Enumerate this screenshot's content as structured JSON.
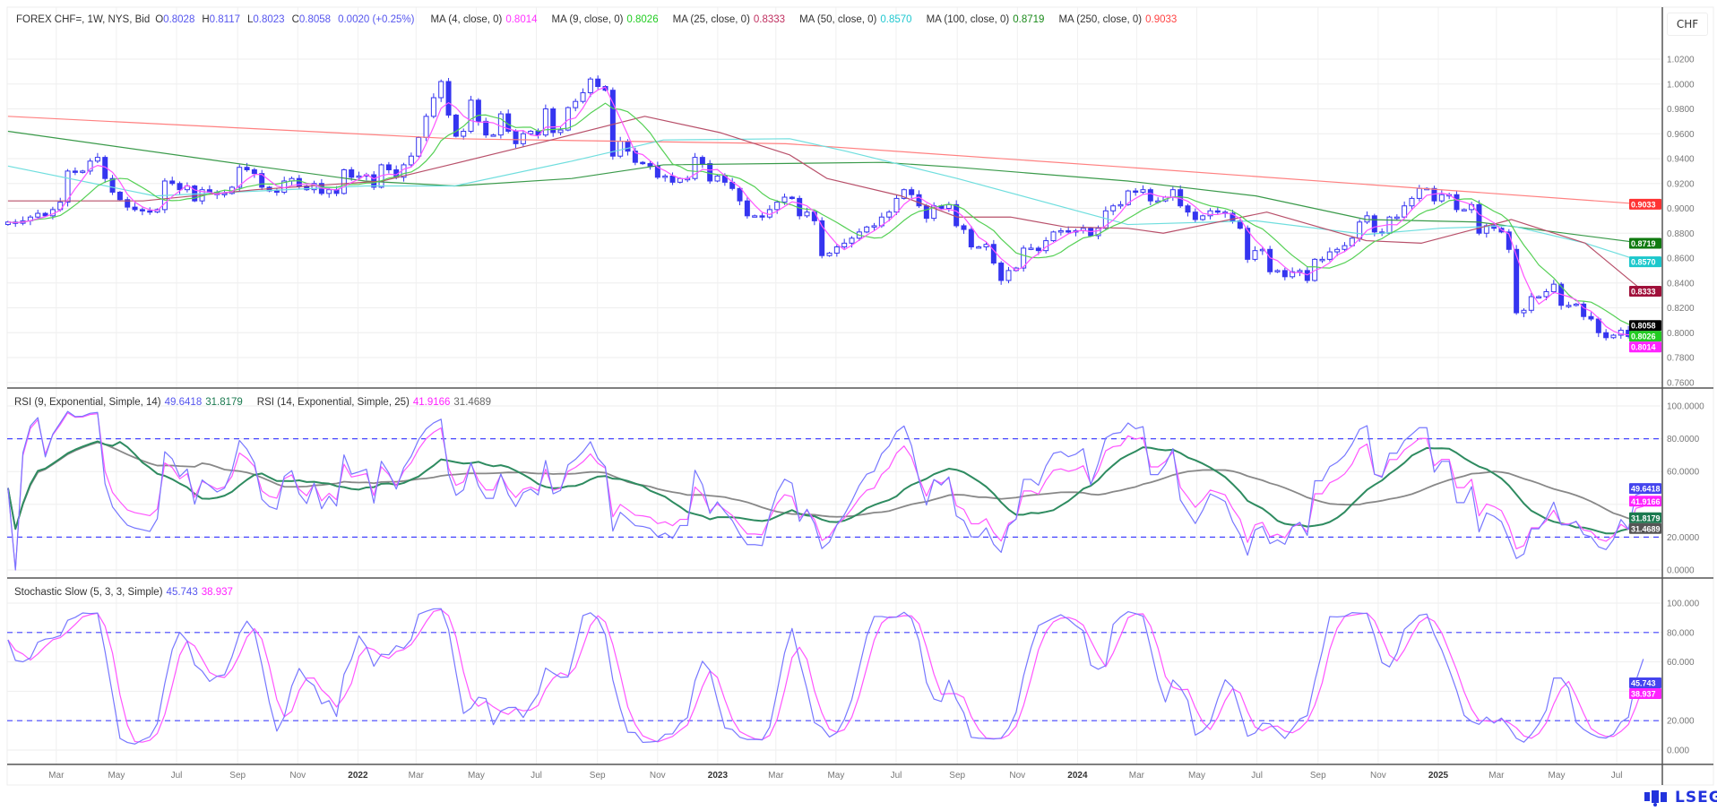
{
  "header": {
    "symbol": "FOREX CHF=, 1W, NYS, Bid",
    "open_label": "O",
    "open": "0.8028",
    "high_label": "H",
    "high": "0.8117",
    "low_label": "L",
    "low": "0.8023",
    "close_label": "C",
    "close": "0.8058",
    "change": "0.0020 (+0.25%)",
    "ma": [
      {
        "label": "MA (4, close, 0)",
        "value": "0.8014",
        "color": "#ff33ff"
      },
      {
        "label": "MA (9, close, 0)",
        "value": "0.8026",
        "color": "#22cc22"
      },
      {
        "label": "MA (25, close, 0)",
        "value": "0.8333",
        "color": "#c03060"
      },
      {
        "label": "MA (50, close, 0)",
        "value": "0.8570",
        "color": "#20c8d0"
      },
      {
        "label": "MA (100, close, 0)",
        "value": "0.8719",
        "color": "#1a8a1a"
      },
      {
        "label": "MA (250, close, 0)",
        "value": "0.9033",
        "color": "#ff4444"
      }
    ],
    "currency_button": "CHF"
  },
  "rsi_legend": {
    "rsi1_label": "RSI (9, Exponential, Simple, 14)",
    "rsi1_value": "49.6418",
    "rsi1_signal": "31.8179",
    "rsi2_label": "RSI (14, Exponential, Simple, 25)",
    "rsi2_value": "41.9166",
    "rsi2_signal": "31.4689"
  },
  "stoch_legend": {
    "label": "Stochastic Slow (5, 3, 3, Simple)",
    "k": "45.743",
    "d": "38.937"
  },
  "logo": "LSEG",
  "colors": {
    "candle": "#3535f0",
    "ma4": "#ff55ff",
    "ma9": "#55d055",
    "ma25": "#b8506a",
    "ma50": "#6fdede",
    "ma100": "#3a9a4a",
    "ma250": "#ff8080",
    "rsi1": "#7777ff",
    "rsi1_signal": "#2e8b60",
    "rsi2": "#ff55ff",
    "rsi2_signal": "#888888",
    "stoch_k": "#7777ff",
    "stoch_d": "#ff55ff",
    "level": "#4444ff"
  },
  "chart_data": [
    {
      "type": "candlestick",
      "title": "FOREX CHF=, 1W, NYS, Bid",
      "date_range": [
        "2021-01-11",
        "2025-07-28"
      ],
      "ylim": [
        0.75,
        1.035
      ],
      "y_ticks": [
        "1.0200",
        "1.0000",
        "0.9800",
        "0.9600",
        "0.9400",
        "0.9200",
        "0.9000",
        "0.8800",
        "0.8600",
        "0.8400",
        "0.8200",
        "0.8000",
        "0.7800",
        "0.7600"
      ],
      "x_ticks": [
        {
          "date": "2021-03-01",
          "label": "Mar"
        },
        {
          "date": "2021-05-01",
          "label": "May"
        },
        {
          "date": "2021-07-01",
          "label": "Jul"
        },
        {
          "date": "2021-09-01",
          "label": "Sep"
        },
        {
          "date": "2021-11-01",
          "label": "Nov"
        },
        {
          "date": "2022-01-01",
          "label": "2022"
        },
        {
          "date": "2022-03-01",
          "label": "Mar"
        },
        {
          "date": "2022-05-01",
          "label": "May"
        },
        {
          "date": "2022-07-01",
          "label": "Jul"
        },
        {
          "date": "2022-09-01",
          "label": "Sep"
        },
        {
          "date": "2022-11-01",
          "label": "Nov"
        },
        {
          "date": "2023-01-01",
          "label": "2023"
        },
        {
          "date": "2023-03-01",
          "label": "Mar"
        },
        {
          "date": "2023-05-01",
          "label": "May"
        },
        {
          "date": "2023-07-01",
          "label": "Jul"
        },
        {
          "date": "2023-09-01",
          "label": "Sep"
        },
        {
          "date": "2023-11-01",
          "label": "Nov"
        },
        {
          "date": "2024-01-01",
          "label": "2024"
        },
        {
          "date": "2024-03-01",
          "label": "Mar"
        },
        {
          "date": "2024-05-01",
          "label": "May"
        },
        {
          "date": "2024-07-01",
          "label": "Jul"
        },
        {
          "date": "2024-09-01",
          "label": "Sep"
        },
        {
          "date": "2024-11-01",
          "label": "Nov"
        },
        {
          "date": "2025-01-01",
          "label": "2025"
        },
        {
          "date": "2025-03-01",
          "label": "Mar"
        },
        {
          "date": "2025-05-01",
          "label": "May"
        },
        {
          "date": "2025-07-01",
          "label": "Jul"
        }
      ],
      "weekly_close": [
        0.889,
        0.888,
        0.89,
        0.893,
        0.896,
        0.894,
        0.899,
        0.905,
        0.93,
        0.929,
        0.93,
        0.938,
        0.941,
        0.924,
        0.913,
        0.907,
        0.901,
        0.899,
        0.898,
        0.897,
        0.899,
        0.922,
        0.92,
        0.915,
        0.918,
        0.906,
        0.915,
        0.913,
        0.911,
        0.912,
        0.917,
        0.933,
        0.931,
        0.928,
        0.917,
        0.914,
        0.913,
        0.922,
        0.924,
        0.918,
        0.915,
        0.92,
        0.912,
        0.915,
        0.912,
        0.931,
        0.925,
        0.926,
        0.927,
        0.917,
        0.935,
        0.931,
        0.925,
        0.935,
        0.942,
        0.957,
        0.974,
        0.989,
        1.002,
        0.975,
        0.958,
        0.962,
        0.987,
        0.97,
        0.959,
        0.959,
        0.976,
        0.962,
        0.952,
        0.96,
        0.962,
        0.959,
        0.98,
        0.961,
        0.963,
        0.981,
        0.986,
        0.993,
        1.004,
        0.998,
        0.995,
        0.942,
        0.954,
        0.946,
        0.937,
        0.936,
        0.934,
        0.925,
        0.926,
        0.921,
        0.924,
        0.924,
        0.941,
        0.936,
        0.922,
        0.926,
        0.921,
        0.916,
        0.906,
        0.894,
        0.894,
        0.893,
        0.899,
        0.905,
        0.909,
        0.908,
        0.894,
        0.897,
        0.89,
        0.862,
        0.864,
        0.869,
        0.872,
        0.876,
        0.881,
        0.885,
        0.886,
        0.893,
        0.897,
        0.908,
        0.915,
        0.911,
        0.902,
        0.892,
        0.902,
        0.9,
        0.903,
        0.886,
        0.883,
        0.869,
        0.869,
        0.871,
        0.856,
        0.842,
        0.85,
        0.852,
        0.868,
        0.868,
        0.866,
        0.874,
        0.881,
        0.882,
        0.881,
        0.882,
        0.884,
        0.878,
        0.884,
        0.898,
        0.902,
        0.903,
        0.914,
        0.913,
        0.915,
        0.906,
        0.906,
        0.909,
        0.915,
        0.902,
        0.897,
        0.891,
        0.894,
        0.898,
        0.897,
        0.896,
        0.89,
        0.884,
        0.859,
        0.866,
        0.867,
        0.849,
        0.85,
        0.845,
        0.849,
        0.85,
        0.842,
        0.859,
        0.859,
        0.865,
        0.867,
        0.87,
        0.876,
        0.889,
        0.894,
        0.881,
        0.88,
        0.893,
        0.893,
        0.902,
        0.908,
        0.916,
        0.916,
        0.906,
        0.911,
        0.911,
        0.899,
        0.899,
        0.903,
        0.88,
        0.886,
        0.884,
        0.881,
        0.867,
        0.816,
        0.818,
        0.829,
        0.829,
        0.833,
        0.839,
        0.822,
        0.822,
        0.823,
        0.813,
        0.811,
        0.8,
        0.796,
        0.798,
        0.802,
        0.797,
        0.805,
        0.8058
      ],
      "moving_averages": {
        "ma25": [
          [
            "2021-01-11",
            0.906
          ],
          [
            "2021-05-28",
            0.906
          ],
          [
            "2021-09-19",
            0.915
          ],
          [
            "2022-01-26",
            0.922
          ],
          [
            "2022-04-09",
            0.936
          ],
          [
            "2022-07-11",
            0.954
          ],
          [
            "2022-10-19",
            0.974
          ],
          [
            "2023-01-03",
            0.961
          ],
          [
            "2023-03-15",
            0.943
          ],
          [
            "2023-04-22",
            0.924
          ],
          [
            "2023-07-06",
            0.91
          ],
          [
            "2023-09-01",
            0.893
          ],
          [
            "2023-10-25",
            0.893
          ],
          [
            "2023-12-20",
            0.885
          ],
          [
            "2024-02-21",
            0.884
          ],
          [
            "2024-03-28",
            0.88
          ],
          [
            "2024-07-11",
            0.897
          ],
          [
            "2024-10-20",
            0.874
          ],
          [
            "2024-12-15",
            0.872
          ],
          [
            "2025-03-16",
            0.891
          ],
          [
            "2025-05-30",
            0.872
          ],
          [
            "2025-07-28",
            0.8333
          ]
        ],
        "ma50": [
          [
            "2021-01-11",
            0.934
          ],
          [
            "2021-06-09",
            0.91
          ],
          [
            "2022-01-08",
            0.918
          ],
          [
            "2022-04-09",
            0.918
          ],
          [
            "2022-08-06",
            0.938
          ],
          [
            "2022-11-07",
            0.955
          ],
          [
            "2023-03-15",
            0.956
          ],
          [
            "2023-05-11",
            0.946
          ],
          [
            "2023-09-01",
            0.924
          ],
          [
            "2024-02-21",
            0.887
          ],
          [
            "2024-06-30",
            0.89
          ],
          [
            "2024-10-20",
            0.879
          ],
          [
            "2025-01-03",
            0.884
          ],
          [
            "2025-03-16",
            0.886
          ],
          [
            "2025-05-30",
            0.872
          ],
          [
            "2025-07-28",
            0.857
          ]
        ],
        "ma100": [
          [
            "2021-01-11",
            0.962
          ],
          [
            "2021-09-19",
            0.934
          ],
          [
            "2022-01-08",
            0.922
          ],
          [
            "2022-04-09",
            0.918
          ],
          [
            "2022-08-06",
            0.924
          ],
          [
            "2022-11-07",
            0.935
          ],
          [
            "2023-06-17",
            0.937
          ],
          [
            "2023-09-01",
            0.933
          ],
          [
            "2024-02-21",
            0.922
          ],
          [
            "2024-06-30",
            0.91
          ],
          [
            "2024-10-20",
            0.891
          ],
          [
            "2025-02-10",
            0.889
          ],
          [
            "2025-07-28",
            0.8719
          ]
        ],
        "ma250": [
          [
            "2021-01-11",
            0.974
          ],
          [
            "2022-04-09",
            0.956
          ],
          [
            "2023-03-11",
            0.952
          ],
          [
            "2024-02-21",
            0.933
          ],
          [
            "2025-07-28",
            0.9033
          ]
        ]
      },
      "last_values": [
        {
          "value": "0.9033",
          "color": "#ff3333"
        },
        {
          "value": "0.8719",
          "color": "#0f7a0f"
        },
        {
          "value": "0.8570",
          "color": "#1cc8cc"
        },
        {
          "value": "0.8333",
          "color": "#a0103a"
        },
        {
          "value": "0.8058",
          "color": "#000000"
        },
        {
          "value": "0.8026",
          "color": "#22cc22"
        },
        {
          "value": "0.8014",
          "color": "#ff22ff"
        }
      ]
    },
    {
      "type": "line",
      "title": "RSI (9, Exponential, Simple, 14) / RSI (14, Exponential, Simple, 25)",
      "ylim": [
        0,
        100
      ],
      "levels": [
        80,
        20
      ],
      "y_ticks": [
        {
          "v": 100,
          "label": "100.0000"
        },
        {
          "v": 80,
          "label": "80.0000"
        },
        {
          "v": 60,
          "label": "60.0000"
        },
        {
          "v": 20,
          "label": "20.0000"
        },
        {
          "v": 0,
          "label": "0.0000"
        }
      ],
      "last_values": [
        {
          "value": "49.6418",
          "color": "#4444ee"
        },
        {
          "value": "41.9166",
          "color": "#ff22ff"
        },
        {
          "value": "31.8179",
          "color": "#1b7a50"
        },
        {
          "value": "31.4689",
          "color": "#555555"
        }
      ]
    },
    {
      "type": "line",
      "title": "Stochastic Slow (5, 3, 3, Simple)",
      "ylim": [
        0,
        100
      ],
      "levels": [
        80,
        20
      ],
      "y_ticks": [
        {
          "v": 100,
          "label": "100.000"
        },
        {
          "v": 80,
          "label": "80.000"
        },
        {
          "v": 60,
          "label": "60.000"
        },
        {
          "v": 20,
          "label": "20.000"
        },
        {
          "v": 0,
          "label": "0.000"
        }
      ],
      "last_values": [
        {
          "value": "45.743",
          "color": "#4444ee"
        },
        {
          "value": "38.937",
          "color": "#ff22ff"
        }
      ]
    }
  ]
}
